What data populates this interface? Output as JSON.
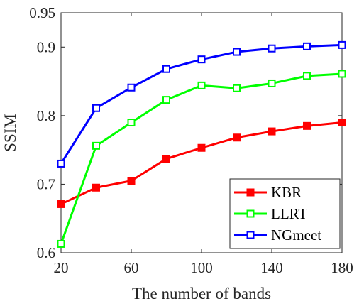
{
  "chart_data": {
    "type": "line",
    "title": "",
    "xlabel": "The number of bands",
    "ylabel": "SSIM",
    "x": [
      20,
      40,
      60,
      80,
      100,
      120,
      140,
      160,
      180
    ],
    "xlim": [
      20,
      180
    ],
    "ylim": [
      0.6,
      0.95
    ],
    "xticks": [
      20,
      60,
      100,
      140,
      180
    ],
    "xtick_labels": [
      "20",
      "60",
      "100",
      "140",
      "180"
    ],
    "yticks": [
      0.6,
      0.7,
      0.8,
      0.9,
      0.95
    ],
    "ytick_labels": [
      "0.6",
      "0.7",
      "0.8",
      "0.9",
      "0.95"
    ],
    "grid": false,
    "legend_position": "bottom-right",
    "series": [
      {
        "name": "KBR",
        "color": "#ff0000",
        "marker": "filled-square",
        "values": [
          0.671,
          0.695,
          0.705,
          0.737,
          0.753,
          0.768,
          0.777,
          0.785,
          0.79
        ]
      },
      {
        "name": "LLRT",
        "color": "#00ff00",
        "marker": "open-square",
        "values": [
          0.613,
          0.756,
          0.79,
          0.823,
          0.844,
          0.84,
          0.847,
          0.858,
          0.861
        ]
      },
      {
        "name": "NGmeet",
        "color": "#0000ff",
        "marker": "open-square",
        "values": [
          0.73,
          0.811,
          0.841,
          0.868,
          0.882,
          0.893,
          0.898,
          0.901,
          0.903
        ]
      }
    ]
  }
}
